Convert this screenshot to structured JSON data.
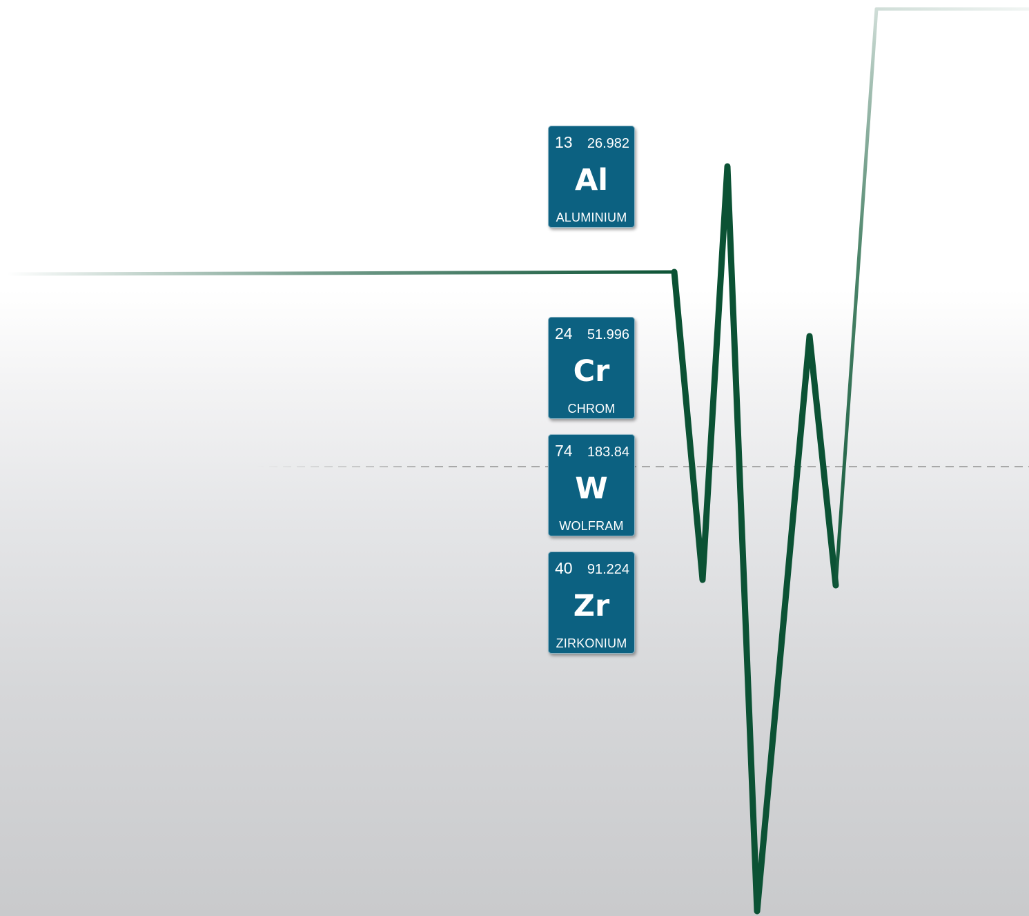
{
  "elements": [
    {
      "number": "13",
      "mass": "26.982",
      "symbol": "Al",
      "name": "ALUMINIUM"
    },
    {
      "number": "24",
      "mass": "51.996",
      "symbol": "Cr",
      "name": "CHROM"
    },
    {
      "number": "74",
      "mass": "183.84",
      "symbol": "W",
      "name": "WOLFRAM"
    },
    {
      "number": "40",
      "mass": "91.224",
      "symbol": "Zr",
      "name": "ZIRKONIUM"
    }
  ],
  "colors": {
    "tile": "#0c6181",
    "trace": "#0b5234",
    "reference_line": "#a8a8a8"
  },
  "trace": {
    "shape": "signal-spikes",
    "reference_line": "dashed"
  }
}
